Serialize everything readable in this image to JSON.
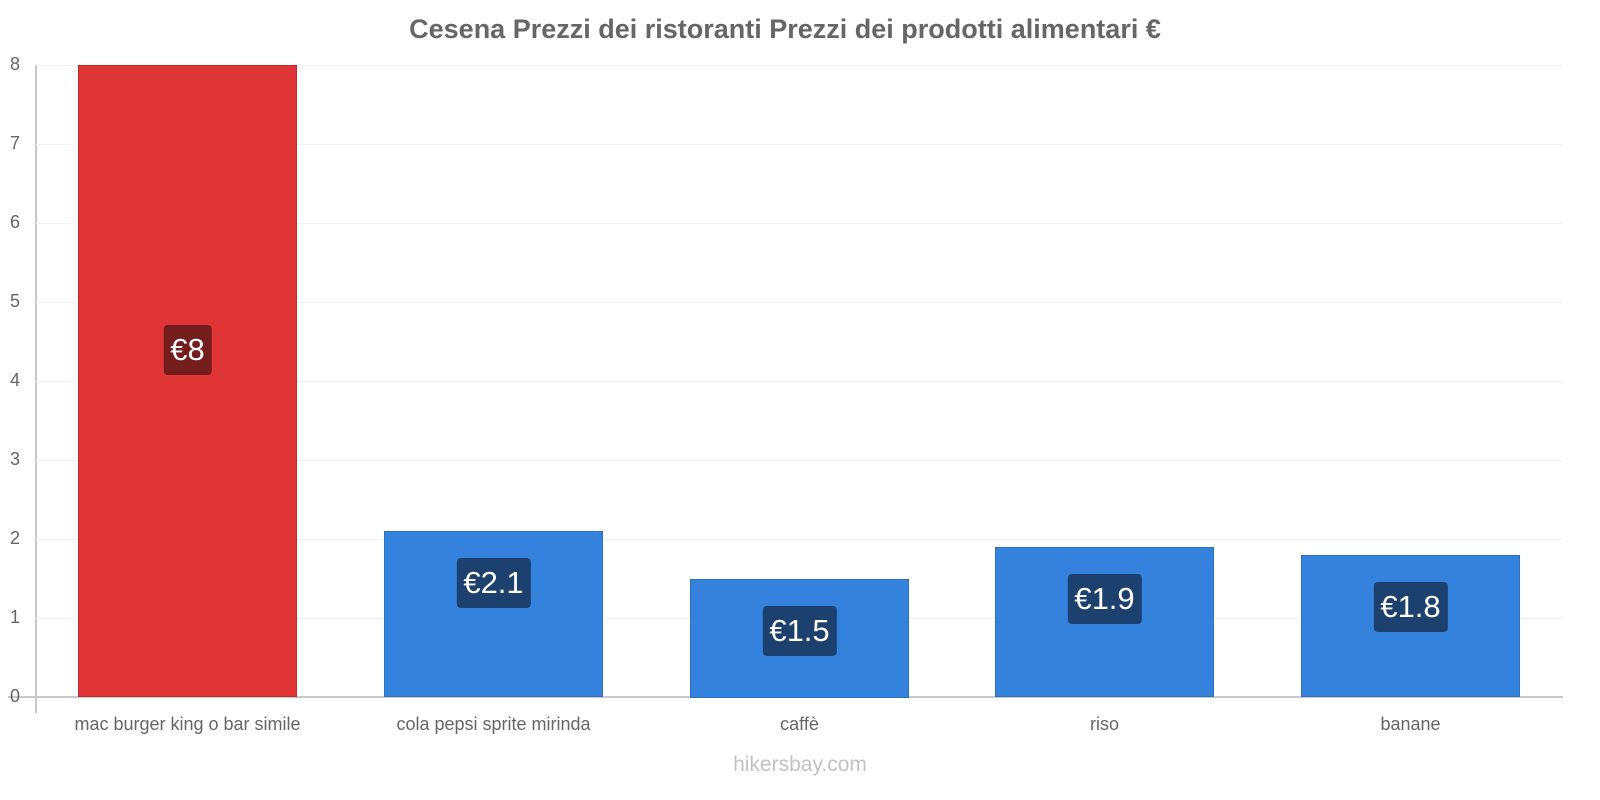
{
  "title": "Cesena Prezzi dei ristoranti Prezzi dei prodotti alimentari €",
  "footer": "hikersbay.com",
  "colors": {
    "highlight": "#e03536",
    "highlight_label": "#731d1d",
    "bar": "#3582dc",
    "bar_label": "#1c416e",
    "text": "#666666",
    "axis": "#c8c8c8"
  },
  "y_ticks": [
    "0",
    "1",
    "2",
    "3",
    "4",
    "5",
    "6",
    "7",
    "8"
  ],
  "chart_data": {
    "type": "bar",
    "title": "Cesena Prezzi dei ristoranti Prezzi dei prodotti alimentari €",
    "xlabel": "",
    "ylabel": "",
    "ylim": [
      0,
      8
    ],
    "grid": true,
    "legend": "none",
    "categories": [
      "mac burger king o bar simile",
      "cola pepsi sprite mirinda",
      "caffè",
      "riso",
      "banane"
    ],
    "values": [
      8,
      2.1,
      1.5,
      1.9,
      1.8
    ],
    "data_labels": [
      "€8",
      "€2.1",
      "€1.5",
      "€1.9",
      "€1.8"
    ],
    "highlight_index": 0
  }
}
